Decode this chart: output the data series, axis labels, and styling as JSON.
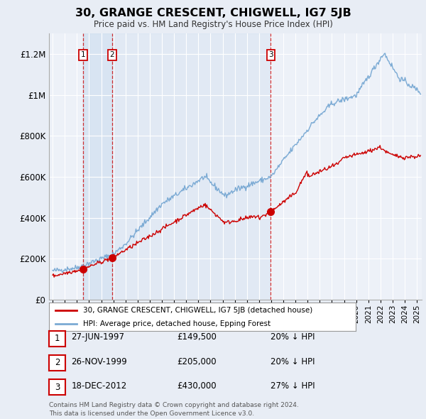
{
  "title": "30, GRANGE CRESCENT, CHIGWELL, IG7 5JB",
  "subtitle": "Price paid vs. HM Land Registry's House Price Index (HPI)",
  "bg_color": "#e8edf5",
  "plot_bg_color": "#edf1f8",
  "grid_color": "#ffffff",
  "sale_color": "#cc0000",
  "hpi_color": "#7baad4",
  "shade_color": "#d0dff0",
  "ylim": [
    0,
    1300000
  ],
  "yticks": [
    0,
    200000,
    400000,
    600000,
    800000,
    1000000,
    1200000
  ],
  "ytick_labels": [
    "£0",
    "£200K",
    "£400K",
    "£600K",
    "£800K",
    "£1M",
    "£1.2M"
  ],
  "xstart": 1994.7,
  "xend": 2025.4,
  "sales": [
    {
      "date": 1997.49,
      "price": 149500,
      "label": "1"
    },
    {
      "date": 1999.9,
      "price": 205000,
      "label": "2"
    },
    {
      "date": 2012.97,
      "price": 430000,
      "label": "3"
    }
  ],
  "sale_table": [
    {
      "num": "1",
      "date": "27-JUN-1997",
      "price": "£149,500",
      "note": "20% ↓ HPI"
    },
    {
      "num": "2",
      "date": "26-NOV-1999",
      "price": "£205,000",
      "note": "20% ↓ HPI"
    },
    {
      "num": "3",
      "date": "18-DEC-2012",
      "price": "£430,000",
      "note": "27% ↓ HPI"
    }
  ],
  "legend_entries": [
    "30, GRANGE CRESCENT, CHIGWELL, IG7 5JB (detached house)",
    "HPI: Average price, detached house, Epping Forest"
  ],
  "footer": "Contains HM Land Registry data © Crown copyright and database right 2024.\nThis data is licensed under the Open Government Licence v3.0."
}
